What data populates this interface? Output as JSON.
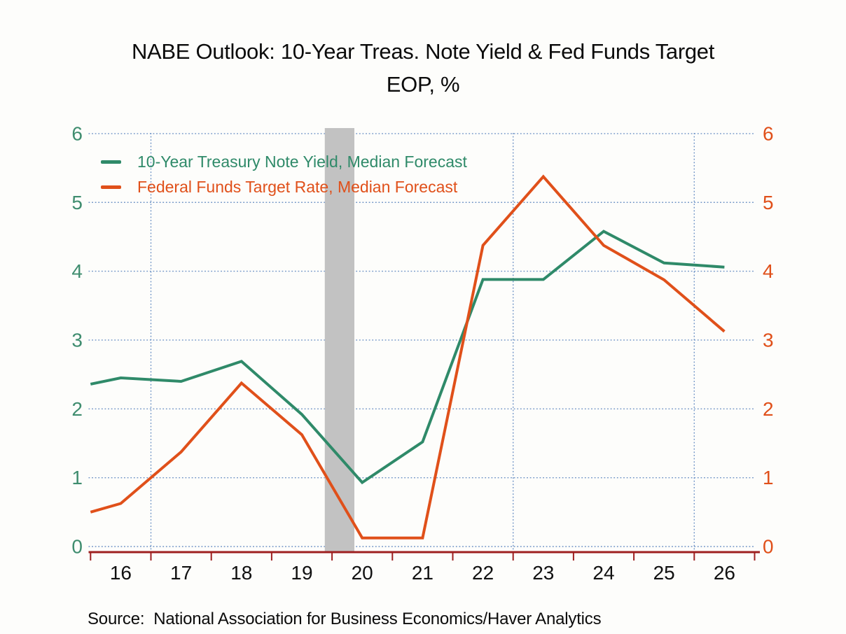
{
  "title": {
    "line1": "NABE Outlook: 10-Year Treas. Note Yield & Fed Funds Target",
    "line2": "EOP, %"
  },
  "source_note": "Source:  National Association for Business Economics/Haver Analytics",
  "colors": {
    "treasury_green": "#2f8a69",
    "fedfunds_orange": "#e0501a",
    "gridline_blue": "#6d92c5",
    "axis_maroon": "#9e2020",
    "recession_band_gray": "#c2c2c2",
    "tick_label_black": "#111111",
    "left_axis_label": "#3f8d6f",
    "right_axis_label": "#e0501a"
  },
  "chart_data": {
    "type": "line",
    "title": "NABE Outlook: 10-Year Treas. Note Yield & Fed Funds Target",
    "subtitle": "EOP, %",
    "x": [
      15.5,
      16,
      17,
      18,
      19,
      20,
      21,
      22,
      23,
      24,
      25,
      26
    ],
    "x_note": "years are 20xx end-of-period; first point (15.5) is the series entering at the plot's left edge",
    "x_tick_labels": [
      "16",
      "17",
      "18",
      "19",
      "20",
      "21",
      "22",
      "23",
      "24",
      "25",
      "26"
    ],
    "x_label_years": [
      16,
      17,
      18,
      19,
      20,
      21,
      22,
      23,
      24,
      25,
      26
    ],
    "x_boundary_ticks": [
      15.5,
      16.5,
      17.5,
      18.5,
      19.5,
      20.5,
      21.5,
      22.5,
      23.5,
      24.5,
      25.5,
      26.5
    ],
    "xlim": [
      15.5,
      26.5
    ],
    "y_ticks": [
      0,
      1,
      2,
      3,
      4,
      5,
      6
    ],
    "ylim": [
      0,
      6
    ],
    "grid": "dotted horizontal at each y tick; dotted vertical every 3 years",
    "grid_x_years": [
      16.5,
      19.5,
      22.5,
      25.5
    ],
    "legend_position": "top-left",
    "recession_band": {
      "x_start": 19.38,
      "x_end": 19.87,
      "color": "#c2c2c2"
    },
    "series": [
      {
        "name": "10-Year Treasury Note Yield, Median Forecast",
        "color": "#2f8a69",
        "values": [
          2.36,
          2.45,
          2.4,
          2.69,
          1.92,
          0.93,
          1.52,
          3.88,
          3.88,
          4.58,
          4.12,
          4.06
        ]
      },
      {
        "name": "Federal Funds Target Rate, Median Forecast",
        "color": "#e0501a",
        "values": [
          0.5,
          0.625,
          1.375,
          2.375,
          1.625,
          0.125,
          0.125,
          4.375,
          5.375,
          4.375,
          3.875,
          3.125
        ]
      }
    ]
  }
}
